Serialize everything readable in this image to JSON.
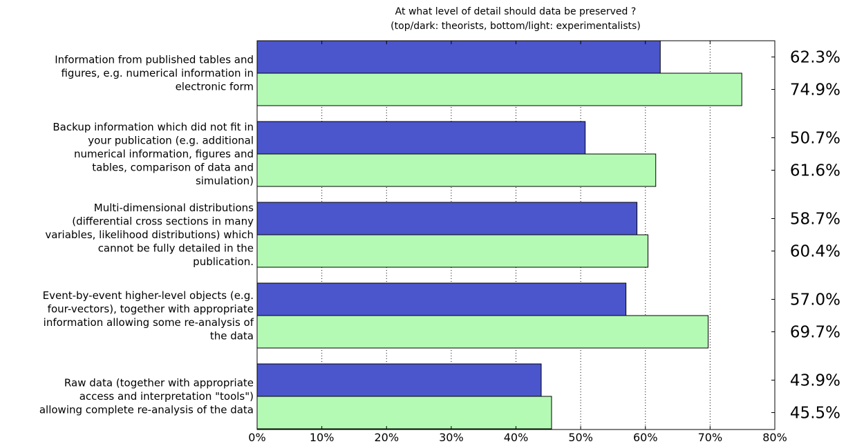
{
  "chart_data": {
    "type": "bar",
    "orientation": "horizontal",
    "title": "At what level of detail should data be preserved ?",
    "subtitle": "(top/dark: theorists, bottom/light: experimentalists)",
    "categories": [
      [
        "Information from published tables and",
        "figures, e.g. numerical information in",
        "electronic form"
      ],
      [
        "Backup information which did not fit in",
        "your publication (e.g. additional",
        "numerical information, figures and",
        "tables, comparison of data and",
        "simulation)"
      ],
      [
        "Multi-dimensional distributions",
        "(differential cross sections in many",
        "variables, likelihood distributions) which",
        "cannot be fully detailed in the",
        "publication."
      ],
      [
        "Event-by-event higher-level objects (e.g.",
        "four-vectors), together with appropriate",
        "information allowing some re-analysis of",
        "the data"
      ],
      [
        "Raw data (together with appropriate",
        "access and interpretation \"tools\")",
        "allowing complete re-analysis of the data"
      ]
    ],
    "series": [
      {
        "color": "#4b55cc",
        "values": [
          62.3,
          50.7,
          58.7,
          57.0,
          43.9
        ],
        "value_labels": [
          "62.3%",
          "50.7%",
          "58.7%",
          "57.0%",
          "43.9%"
        ]
      },
      {
        "color": "#b4fab4",
        "values": [
          74.9,
          61.6,
          60.4,
          69.7,
          45.5
        ],
        "value_labels": [
          "74.9%",
          "61.6%",
          "60.4%",
          "69.7%",
          "45.5%"
        ]
      }
    ],
    "xlim": [
      0,
      80
    ],
    "xticks": [
      0,
      10,
      20,
      30,
      40,
      50,
      60,
      70,
      80
    ],
    "xtick_labels": [
      "0%",
      "10%",
      "20%",
      "30%",
      "40%",
      "50%",
      "60%",
      "70%",
      "80%"
    ],
    "grid": "vertical dotted"
  }
}
